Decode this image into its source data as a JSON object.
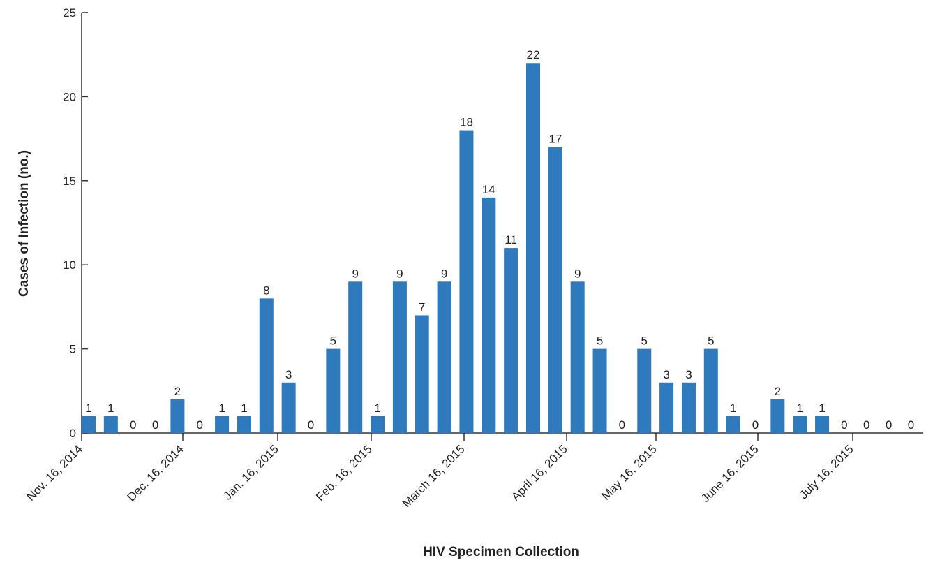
{
  "chart_data": {
    "type": "bar",
    "title": "",
    "xlabel": "HIV Specimen Collection",
    "ylabel": "Cases of Infection (no.)",
    "ylim": [
      0,
      25
    ],
    "yticks": [
      0,
      5,
      10,
      15,
      20,
      25
    ],
    "bar_color": "#2f79bd",
    "grid": false,
    "values": [
      1,
      1,
      0,
      0,
      2,
      0,
      1,
      1,
      8,
      3,
      0,
      5,
      9,
      1,
      9,
      7,
      9,
      18,
      14,
      11,
      22,
      17,
      9,
      5,
      0,
      5,
      3,
      3,
      5,
      1,
      0,
      2,
      1,
      1,
      0,
      0,
      0,
      0
    ],
    "x_tick_labels": [
      "Nov. 16, 2014",
      "Dec. 16, 2014",
      "Jan. 16, 2015",
      "Feb. 16, 2015",
      "March 16, 2015",
      "April 16, 2015",
      "May 16, 2015",
      "June 16, 2015",
      "July 16, 2015"
    ]
  }
}
